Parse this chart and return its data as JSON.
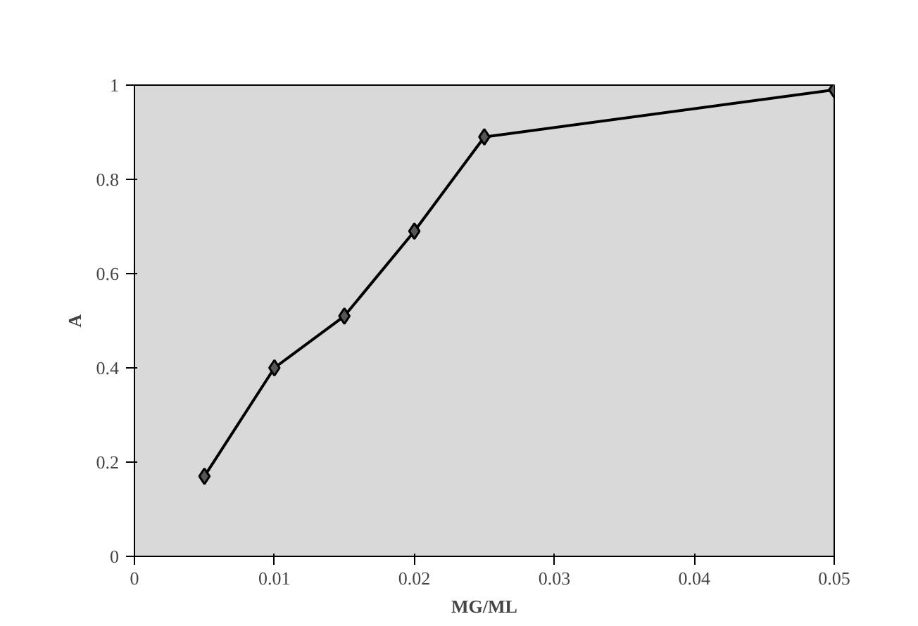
{
  "chart_data": {
    "type": "line",
    "xlabel": "MG/ML",
    "ylabel": "A",
    "x": [
      0.005,
      0.01,
      0.015,
      0.02,
      0.025,
      0.05
    ],
    "series": [
      {
        "color": "#000000",
        "values": [
          0.17,
          0.4,
          0.51,
          0.69,
          0.89,
          0.99
        ]
      }
    ],
    "xlim": [
      0,
      0.05
    ],
    "ylim": [
      0,
      1
    ],
    "xticks": [
      0,
      0.01,
      0.02,
      0.03,
      0.04,
      0.05
    ],
    "yticks": [
      0,
      0.2,
      0.4,
      0.6,
      0.8,
      1
    ],
    "grid": false,
    "marker": "diamond",
    "line_style": "solid"
  }
}
